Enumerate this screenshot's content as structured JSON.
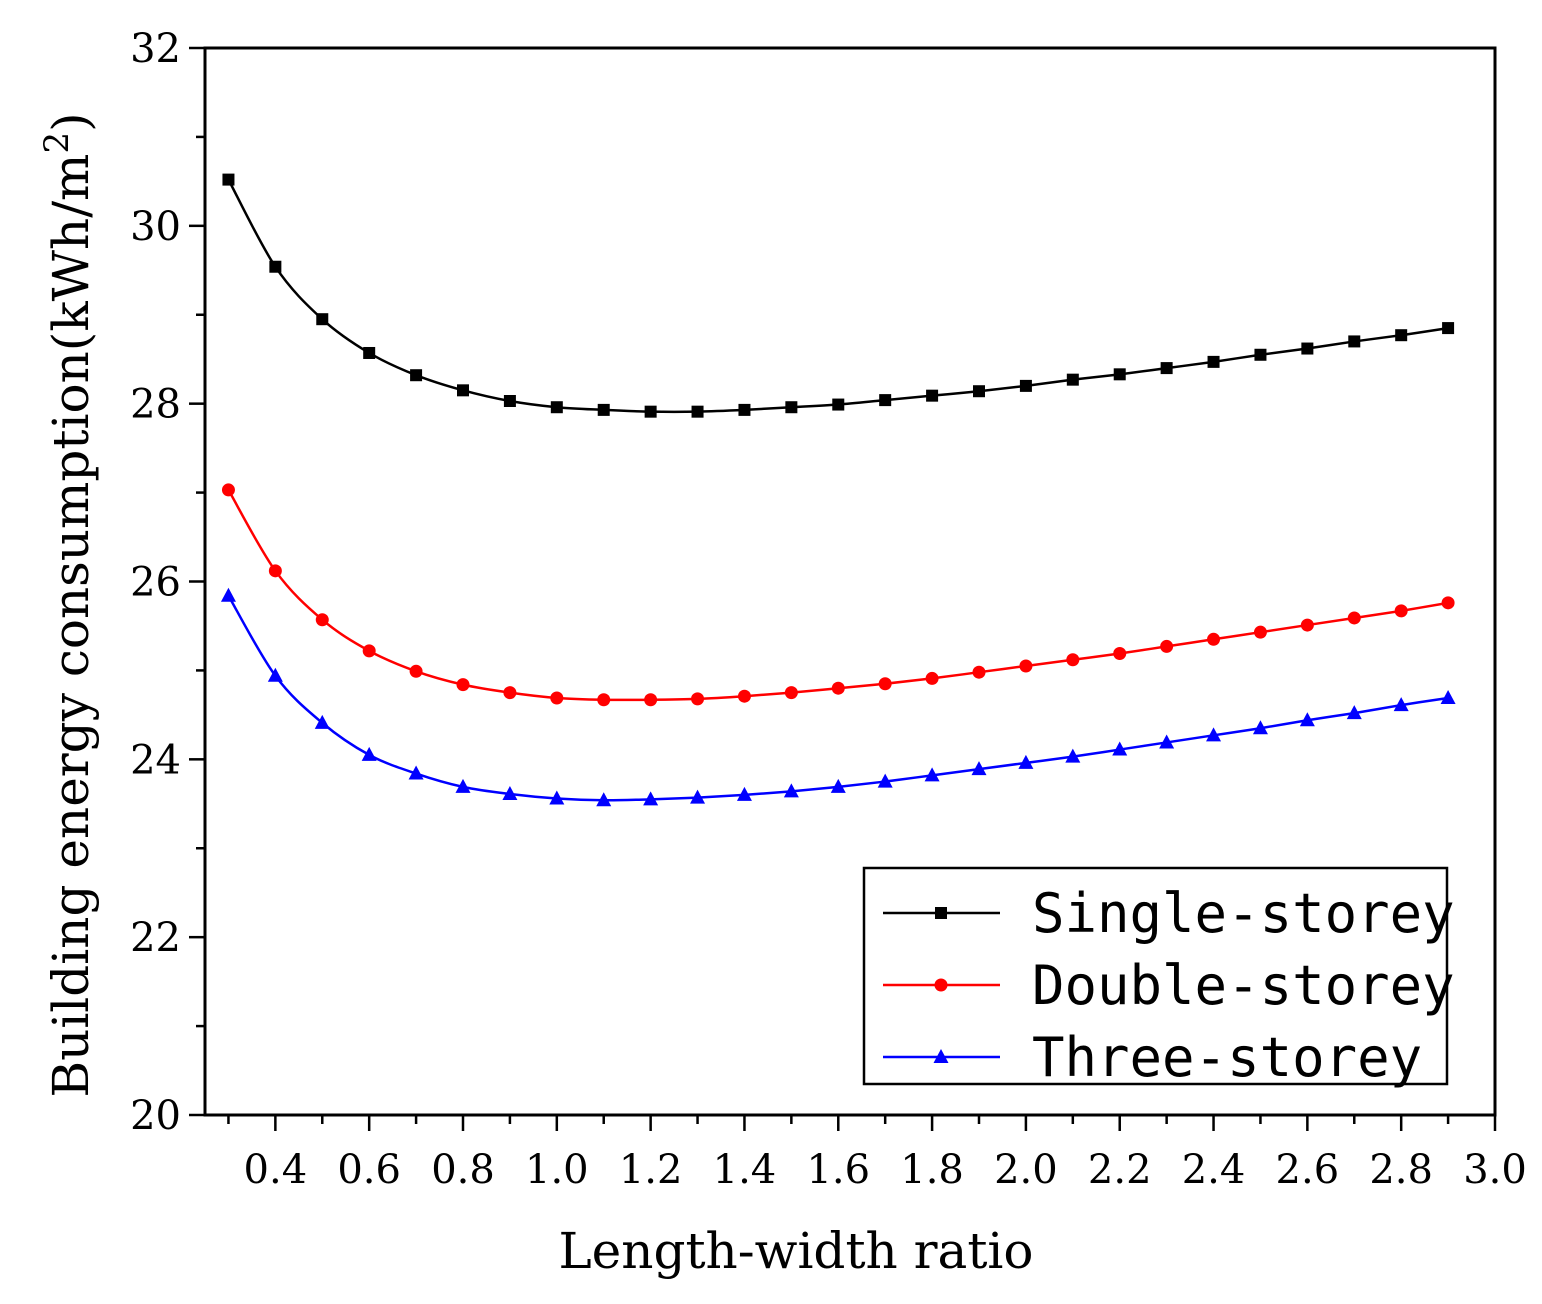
{
  "chart_data": {
    "type": "line",
    "xlabel": "Length-width ratio",
    "ylabel": "Building energy consumption(kWh/m",
    "ylabel_superscript": "2",
    "ylabel_close": ")",
    "xlim": [
      0.25,
      3.0
    ],
    "ylim": [
      20,
      32
    ],
    "x_ticks": [
      "0.4",
      "0.6",
      "0.8",
      "1.0",
      "1.2",
      "1.4",
      "1.6",
      "1.8",
      "2.0",
      "2.2",
      "2.4",
      "2.6",
      "2.8",
      "3.0"
    ],
    "y_ticks": [
      "20",
      "22",
      "24",
      "26",
      "28",
      "30",
      "32"
    ],
    "grid": false,
    "legend_position": "bottom-right",
    "x": [
      0.3,
      0.4,
      0.5,
      0.6,
      0.7,
      0.8,
      0.9,
      1.0,
      1.1,
      1.2,
      1.3,
      1.4,
      1.5,
      1.6,
      1.7,
      1.8,
      1.9,
      2.0,
      2.1,
      2.2,
      2.3,
      2.4,
      2.5,
      2.6,
      2.7,
      2.8,
      2.9
    ],
    "series": [
      {
        "name": "Single-storey",
        "color": "#000000",
        "marker": "square",
        "values": [
          30.52,
          29.54,
          28.95,
          28.57,
          28.32,
          28.15,
          28.03,
          27.96,
          27.93,
          27.91,
          27.91,
          27.93,
          27.96,
          27.99,
          28.04,
          28.09,
          28.14,
          28.2,
          28.27,
          28.33,
          28.4,
          28.47,
          28.55,
          28.62,
          28.7,
          28.77,
          28.85
        ]
      },
      {
        "name": "Double-storey",
        "color": "#ff0000",
        "marker": "circle",
        "values": [
          27.03,
          26.12,
          25.57,
          25.22,
          24.99,
          24.84,
          24.75,
          24.69,
          24.67,
          24.67,
          24.68,
          24.71,
          24.75,
          24.8,
          24.85,
          24.91,
          24.98,
          25.05,
          25.12,
          25.19,
          25.27,
          25.35,
          25.43,
          25.51,
          25.59,
          25.67,
          25.76
        ]
      },
      {
        "name": "Three-storey",
        "color": "#0000ff",
        "marker": "triangle",
        "values": [
          25.84,
          24.94,
          24.41,
          24.05,
          23.84,
          23.69,
          23.61,
          23.56,
          23.54,
          23.55,
          23.57,
          23.6,
          23.64,
          23.69,
          23.75,
          23.82,
          23.89,
          23.96,
          24.03,
          24.11,
          24.19,
          24.27,
          24.35,
          24.44,
          24.52,
          24.61,
          24.69
        ]
      }
    ]
  }
}
